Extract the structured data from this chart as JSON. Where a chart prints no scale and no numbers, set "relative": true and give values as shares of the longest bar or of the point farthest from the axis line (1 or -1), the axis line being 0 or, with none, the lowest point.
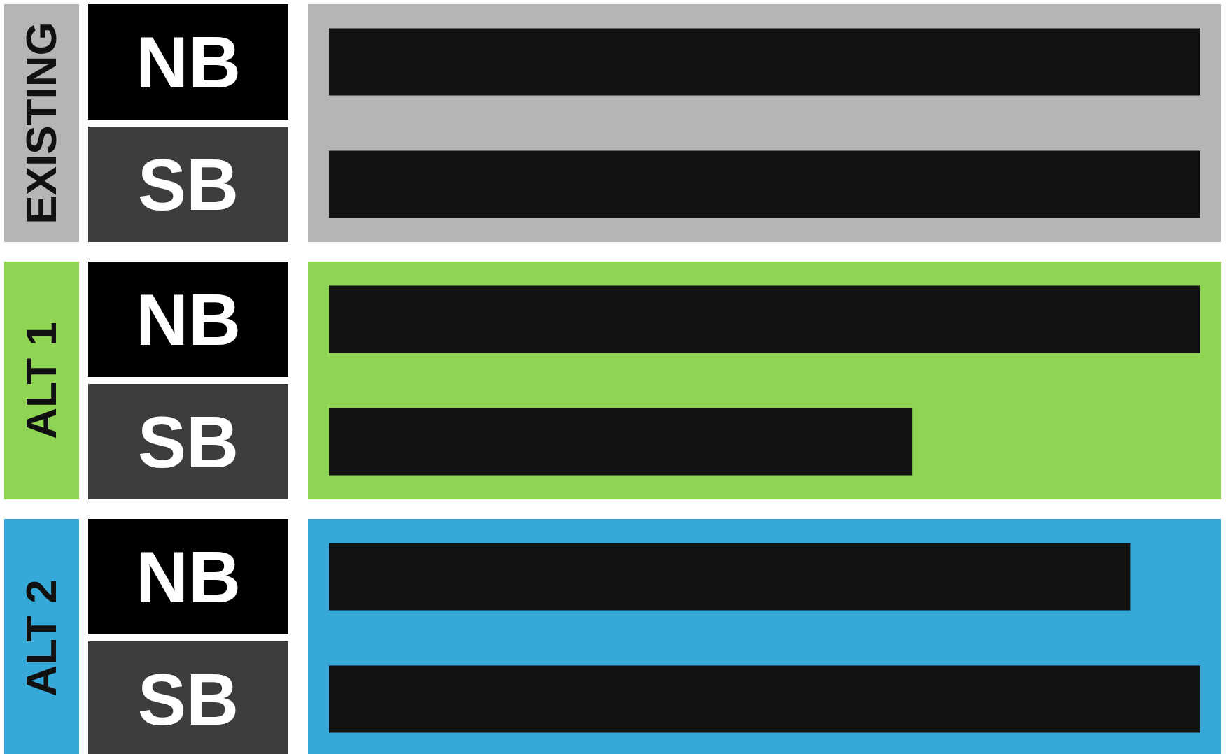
{
  "chart_data": [
    {
      "type": "bar",
      "title": "EXISTING",
      "orientation": "horizontal",
      "relative": true,
      "color": "#111111",
      "categories": [
        "NB",
        "SB"
      ],
      "values": [
        1,
        1
      ],
      "bands": [
        {
          "axis": "y",
          "from": "NB",
          "to": "SB",
          "color": "#b4b5b7"
        }
      ]
    },
    {
      "type": "bar",
      "title": "ALT 1",
      "orientation": "horizontal",
      "relative": true,
      "color": "#111111",
      "categories": [
        "NB",
        "SB"
      ],
      "values": [
        1,
        0.67
      ],
      "bands": [
        {
          "axis": "y",
          "from": "NB",
          "to": "SB",
          "color": "#8fd553"
        }
      ]
    },
    {
      "type": "bar",
      "title": "ALT 2",
      "orientation": "horizontal",
      "relative": true,
      "color": "#111111",
      "categories": [
        "NB",
        "SB"
      ],
      "values": [
        0.92,
        1
      ],
      "bands": [
        {
          "axis": "y",
          "from": "NB",
          "to": "SB",
          "color": "#36a9d9"
        }
      ]
    }
  ]
}
